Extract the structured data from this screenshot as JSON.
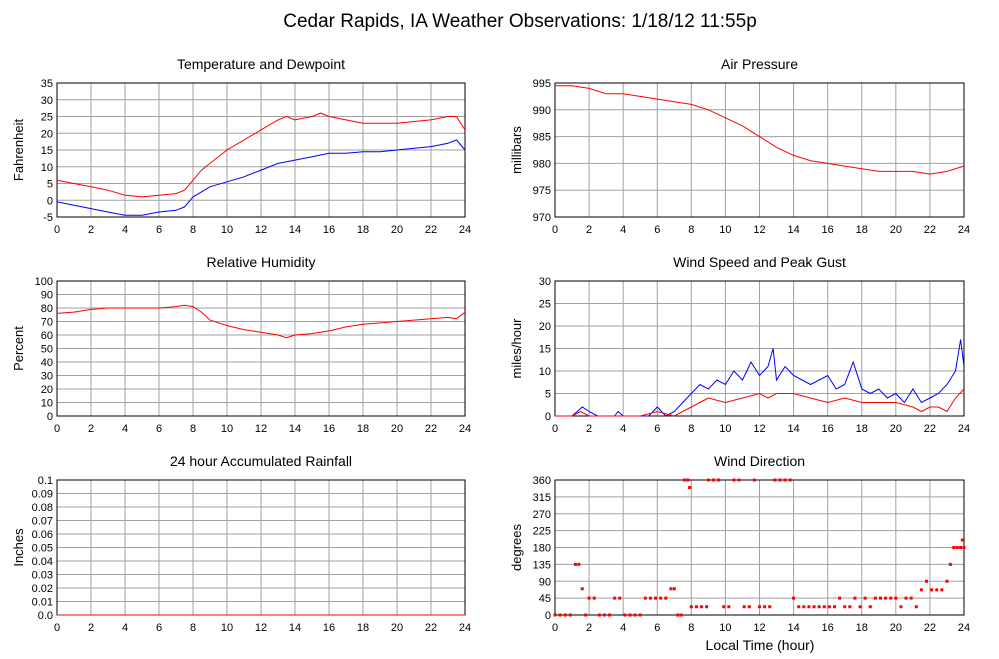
{
  "page_title": "Cedar Rapids, IA Weather Observations: 1/18/12 11:55p",
  "footer_xlabel": "Local Time (hour)",
  "colors": {
    "red": "#ff0000",
    "blue": "#0000ff",
    "grid": "#a0a0a0",
    "axis": "#000000"
  },
  "chart_data": [
    {
      "id": "temp",
      "type": "line",
      "title": "Temperature and Dewpoint",
      "xlabel": "",
      "ylabel": "Fahrenheit",
      "xlim": [
        0,
        24
      ],
      "ylim": [
        -5,
        35
      ],
      "xticks": [
        0,
        2,
        4,
        6,
        8,
        10,
        12,
        14,
        16,
        18,
        20,
        22,
        24
      ],
      "yticks": [
        -5,
        0,
        5,
        10,
        15,
        20,
        25,
        30,
        35
      ],
      "grid": true,
      "series": [
        {
          "color": "#ff0000",
          "x": [
            0,
            1,
            2,
            3,
            4,
            5,
            6,
            7,
            7.5,
            8,
            8.5,
            9,
            10,
            11,
            12,
            13,
            13.5,
            14,
            15,
            15.5,
            16,
            17,
            18,
            19,
            20,
            21,
            22,
            23,
            23.5,
            24
          ],
          "y": [
            6,
            5,
            4,
            3,
            1.5,
            1,
            1.5,
            2,
            3,
            6,
            9,
            11,
            15,
            18,
            21,
            24,
            25,
            24,
            25,
            26,
            25,
            24,
            23,
            23,
            23,
            23.5,
            24,
            25,
            25,
            21
          ]
        },
        {
          "color": "#0000ff",
          "x": [
            0,
            1,
            2,
            3,
            4,
            5,
            6,
            7,
            7.5,
            8,
            8.5,
            9,
            10,
            11,
            12,
            13,
            14,
            15,
            16,
            17,
            18,
            19,
            20,
            21,
            22,
            23,
            23.5,
            24
          ],
          "y": [
            -0.5,
            -1.5,
            -2.5,
            -3.5,
            -4.5,
            -4.5,
            -3.5,
            -3,
            -2,
            1,
            2.5,
            4,
            5.5,
            7,
            9,
            11,
            12,
            13,
            14,
            14,
            14.5,
            14.5,
            15,
            15.5,
            16,
            17,
            18,
            15
          ]
        }
      ]
    },
    {
      "id": "pressure",
      "type": "line",
      "title": "Air Pressure",
      "xlabel": "",
      "ylabel": "millibars",
      "xlim": [
        0,
        24
      ],
      "ylim": [
        970,
        995
      ],
      "xticks": [
        0,
        2,
        4,
        6,
        8,
        10,
        12,
        14,
        16,
        18,
        20,
        22,
        24
      ],
      "yticks": [
        970,
        975,
        980,
        985,
        990,
        995
      ],
      "grid": true,
      "series": [
        {
          "color": "#ff0000",
          "x": [
            0,
            1,
            2,
            3,
            4,
            5,
            6,
            7,
            8,
            9,
            10,
            11,
            12,
            13,
            14,
            15,
            16,
            17,
            18,
            19,
            20,
            21,
            22,
            23,
            24
          ],
          "y": [
            994.5,
            994.5,
            994,
            993,
            993,
            992.5,
            992,
            991.5,
            991,
            990,
            988.5,
            987,
            985,
            983,
            981.5,
            980.5,
            980,
            979.5,
            979,
            978.5,
            978.5,
            978.5,
            978,
            978.5,
            979.5
          ]
        }
      ]
    },
    {
      "id": "humidity",
      "type": "line",
      "title": "Relative Humidity",
      "xlabel": "",
      "ylabel": "Percent",
      "xlim": [
        0,
        24
      ],
      "ylim": [
        0,
        100
      ],
      "xticks": [
        0,
        2,
        4,
        6,
        8,
        10,
        12,
        14,
        16,
        18,
        20,
        22,
        24
      ],
      "yticks": [
        0,
        10,
        20,
        30,
        40,
        50,
        60,
        70,
        80,
        90,
        100
      ],
      "grid": true,
      "series": [
        {
          "color": "#ff0000",
          "x": [
            0,
            1,
            2,
            3,
            4,
            5,
            6,
            7,
            7.5,
            8,
            8.5,
            9,
            10,
            11,
            12,
            13,
            13.5,
            14,
            15,
            16,
            17,
            18,
            19,
            20,
            21,
            22,
            23,
            23.5,
            24
          ],
          "y": [
            76,
            77,
            79,
            80,
            80,
            80,
            80,
            81,
            82,
            81,
            77,
            71,
            67,
            64,
            62,
            60,
            58,
            60,
            61,
            63,
            66,
            68,
            69,
            70,
            71,
            72,
            73,
            72,
            77
          ]
        }
      ]
    },
    {
      "id": "wind",
      "type": "line",
      "title": "Wind Speed and Peak Gust",
      "xlabel": "",
      "ylabel": "miles/hour",
      "xlim": [
        0,
        24
      ],
      "ylim": [
        0,
        30
      ],
      "xticks": [
        0,
        2,
        4,
        6,
        8,
        10,
        12,
        14,
        16,
        18,
        20,
        22,
        24
      ],
      "yticks": [
        0,
        5,
        10,
        15,
        20,
        25,
        30
      ],
      "grid": true,
      "series": [
        {
          "color": "#0000ff",
          "x": [
            0,
            1,
            1.3,
            1.6,
            2,
            2.5,
            3.5,
            3.7,
            4,
            5,
            5.5,
            6,
            6.5,
            7,
            7.5,
            8,
            8.5,
            9,
            9.5,
            10,
            10.5,
            11,
            11.5,
            12,
            12.5,
            12.8,
            13,
            13.5,
            14,
            14.5,
            15,
            15.5,
            16,
            16.5,
            17,
            17.5,
            18,
            18.5,
            19,
            19.5,
            20,
            20.5,
            21,
            21.5,
            22,
            22.5,
            23,
            23.5,
            23.8,
            24
          ],
          "y": [
            0,
            0,
            1,
            2,
            1,
            0,
            0,
            1,
            0,
            0,
            0,
            2,
            0,
            1,
            3,
            5,
            7,
            6,
            8,
            7,
            10,
            8,
            12,
            9,
            11,
            15,
            8,
            11,
            9,
            8,
            7,
            8,
            9,
            6,
            7,
            12,
            6,
            5,
            6,
            4,
            5,
            3,
            6,
            3,
            4,
            5,
            7,
            10,
            17,
            11
          ]
        },
        {
          "color": "#ff0000",
          "x": [
            0,
            1,
            1.5,
            2,
            3,
            5,
            6,
            7,
            7.5,
            8,
            8.5,
            9,
            10,
            11,
            12,
            12.5,
            13,
            14,
            15,
            16,
            17,
            18,
            19,
            20,
            21,
            21.5,
            22,
            22.5,
            23,
            23.5,
            24
          ],
          "y": [
            0,
            0,
            1,
            0,
            0,
            0,
            1,
            0,
            1,
            2,
            3,
            4,
            3,
            4,
            5,
            4,
            5,
            5,
            4,
            3,
            4,
            3,
            3,
            3,
            2,
            1,
            2,
            2,
            1,
            4,
            6
          ]
        }
      ]
    },
    {
      "id": "rain",
      "type": "line",
      "title": "24 hour Accumulated Rainfall",
      "xlabel": "",
      "ylabel": "Inches",
      "xlim": [
        0,
        24
      ],
      "ylim": [
        0,
        0.1
      ],
      "xticks": [
        0,
        2,
        4,
        6,
        8,
        10,
        12,
        14,
        16,
        18,
        20,
        22,
        24
      ],
      "yticks": [
        0.0,
        0.01,
        0.02,
        0.03,
        0.04,
        0.05,
        0.06,
        0.07,
        0.08,
        0.09,
        0.1
      ],
      "ytick_labels": [
        "0.0",
        "0.01",
        "0.02",
        "0.03",
        "0.04",
        "0.05",
        "0.06",
        "0.07",
        "0.08",
        "0.09",
        "0.1"
      ],
      "grid": true,
      "series": [
        {
          "color": "#ff0000",
          "x": [
            0,
            24
          ],
          "y": [
            0,
            0
          ]
        }
      ]
    },
    {
      "id": "direction",
      "type": "scatter",
      "title": "Wind Direction",
      "xlabel": "Local Time (hour)",
      "ylabel": "degrees",
      "xlim": [
        0,
        24
      ],
      "ylim": [
        0,
        360
      ],
      "xticks": [
        0,
        2,
        4,
        6,
        8,
        10,
        12,
        14,
        16,
        18,
        20,
        22,
        24
      ],
      "yticks": [
        0,
        45,
        90,
        135,
        180,
        225,
        270,
        315,
        360
      ],
      "grid": true,
      "points": [
        [
          0.0,
          0
        ],
        [
          0.3,
          0
        ],
        [
          0.6,
          0
        ],
        [
          0.9,
          0
        ],
        [
          1.2,
          135
        ],
        [
          1.4,
          135
        ],
        [
          1.6,
          70
        ],
        [
          1.8,
          0
        ],
        [
          2.0,
          45
        ],
        [
          2.3,
          45
        ],
        [
          2.6,
          0
        ],
        [
          2.9,
          0
        ],
        [
          3.2,
          0
        ],
        [
          3.5,
          45
        ],
        [
          3.8,
          45
        ],
        [
          4.1,
          0
        ],
        [
          4.4,
          0
        ],
        [
          4.7,
          0
        ],
        [
          5.0,
          0
        ],
        [
          5.3,
          45
        ],
        [
          5.6,
          45
        ],
        [
          5.9,
          45
        ],
        [
          6.2,
          45
        ],
        [
          6.5,
          45
        ],
        [
          6.8,
          70
        ],
        [
          7.0,
          70
        ],
        [
          7.2,
          0
        ],
        [
          7.4,
          0
        ],
        [
          7.6,
          360
        ],
        [
          7.8,
          360
        ],
        [
          7.9,
          340
        ],
        [
          8.0,
          22
        ],
        [
          8.3,
          22
        ],
        [
          8.6,
          22
        ],
        [
          8.9,
          22
        ],
        [
          9.0,
          360
        ],
        [
          9.3,
          360
        ],
        [
          9.6,
          360
        ],
        [
          9.9,
          22
        ],
        [
          10.2,
          22
        ],
        [
          10.5,
          360
        ],
        [
          10.8,
          360
        ],
        [
          11.1,
          22
        ],
        [
          11.4,
          22
        ],
        [
          11.7,
          360
        ],
        [
          12.0,
          22
        ],
        [
          12.3,
          22
        ],
        [
          12.6,
          22
        ],
        [
          12.9,
          360
        ],
        [
          13.2,
          360
        ],
        [
          13.5,
          360
        ],
        [
          13.8,
          360
        ],
        [
          14.0,
          45
        ],
        [
          14.3,
          22
        ],
        [
          14.6,
          22
        ],
        [
          14.9,
          22
        ],
        [
          15.2,
          22
        ],
        [
          15.5,
          22
        ],
        [
          15.8,
          22
        ],
        [
          16.1,
          22
        ],
        [
          16.4,
          22
        ],
        [
          16.7,
          45
        ],
        [
          17.0,
          22
        ],
        [
          17.3,
          22
        ],
        [
          17.6,
          45
        ],
        [
          17.9,
          22
        ],
        [
          18.2,
          45
        ],
        [
          18.5,
          22
        ],
        [
          18.8,
          45
        ],
        [
          19.1,
          45
        ],
        [
          19.4,
          45
        ],
        [
          19.7,
          45
        ],
        [
          20.0,
          45
        ],
        [
          20.3,
          22
        ],
        [
          20.6,
          45
        ],
        [
          20.9,
          45
        ],
        [
          21.2,
          22
        ],
        [
          21.5,
          67
        ],
        [
          21.8,
          90
        ],
        [
          22.1,
          67
        ],
        [
          22.4,
          67
        ],
        [
          22.7,
          67
        ],
        [
          23.0,
          90
        ],
        [
          23.2,
          135
        ],
        [
          23.4,
          180
        ],
        [
          23.6,
          180
        ],
        [
          23.8,
          180
        ],
        [
          23.9,
          200
        ],
        [
          24.0,
          180
        ]
      ],
      "color": "#ff0000"
    }
  ]
}
